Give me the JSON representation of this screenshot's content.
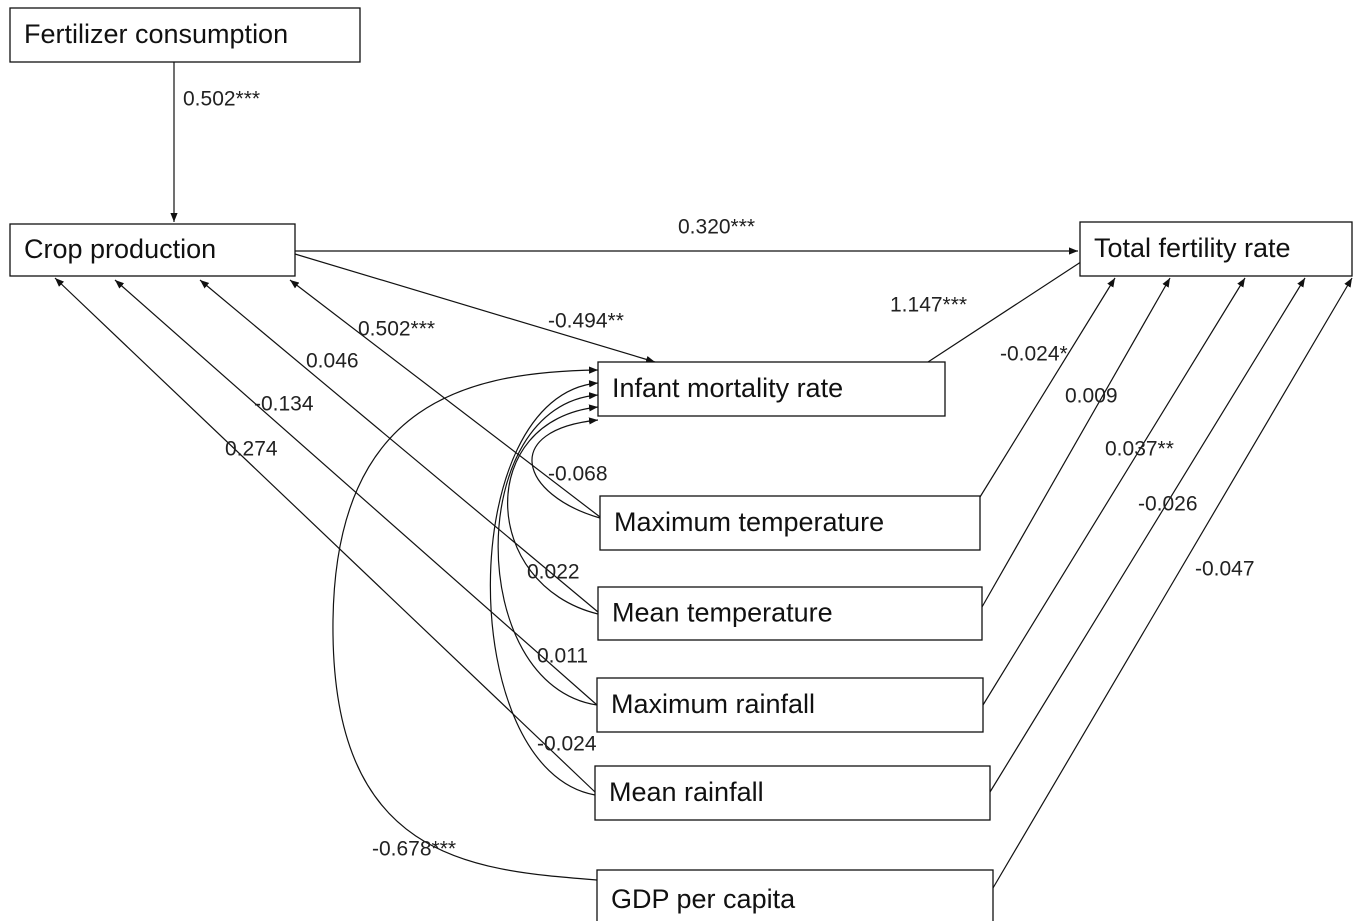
{
  "nodes": [
    {
      "label": "Fertilizer consumption"
    },
    {
      "label": "Crop production"
    },
    {
      "label": "Total fertility rate"
    },
    {
      "label": "Infant mortality rate"
    },
    {
      "label": "Maximum temperature"
    },
    {
      "label": "Mean temperature"
    },
    {
      "label": "Maximum rainfall"
    },
    {
      "label": "Mean rainfall"
    },
    {
      "label": "GDP per capita"
    }
  ],
  "edges": [
    {
      "label": "0.502***"
    },
    {
      "label": "0.320***"
    },
    {
      "label": "-0.494**"
    },
    {
      "label": "1.147***"
    },
    {
      "label": "0.502***"
    },
    {
      "label": "0.046"
    },
    {
      "label": "-0.134"
    },
    {
      "label": "0.274"
    },
    {
      "label": "-0.068"
    },
    {
      "label": "0.022"
    },
    {
      "label": "0.011"
    },
    {
      "label": "-0.024"
    },
    {
      "label": "-0.678***"
    },
    {
      "label": "-0.024*"
    },
    {
      "label": "0.009"
    },
    {
      "label": "0.037**"
    },
    {
      "label": "-0.026"
    },
    {
      "label": "-0.047"
    }
  ]
}
